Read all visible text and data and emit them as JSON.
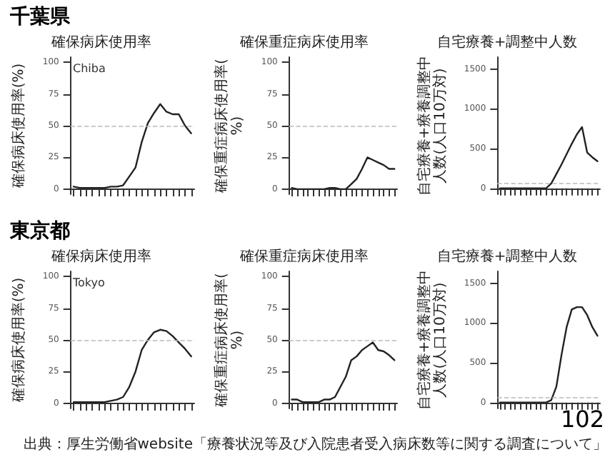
{
  "chart_data": [
    {
      "type": "line",
      "subtitle": "千葉県",
      "title": "確保病床使用率",
      "ylabel": "確保病床使用率(%)",
      "categories": [
        null,
        null,
        null,
        null,
        null,
        null,
        null,
        null,
        null,
        null,
        null,
        null,
        null,
        null,
        null,
        null,
        null,
        null,
        null,
        null
      ],
      "series": [
        {
          "color": "#222222",
          "values": [
            2,
            1,
            1,
            1,
            1,
            1,
            2,
            2,
            3,
            10,
            17,
            37,
            52,
            60,
            67,
            61,
            59,
            59,
            50,
            44
          ]
        }
      ],
      "ylim": [
        -4,
        104
      ],
      "yticks": [
        0,
        25,
        50,
        75,
        100
      ],
      "ref_lines": [
        {
          "axis": "y",
          "value": 50,
          "color": "#bbbbbb",
          "line_style": "dashed"
        }
      ],
      "annotations": [
        "Chiba"
      ],
      "line_style": "solid",
      "tick_labels": "y"
    },
    {
      "type": "line",
      "title": "確保重症病床使用率",
      "ylabel": "確保重症病床使用率(%)",
      "categories": [
        null,
        null,
        null,
        null,
        null,
        null,
        null,
        null,
        null,
        null,
        null,
        null,
        null,
        null,
        null,
        null,
        null,
        null,
        null,
        null
      ],
      "series": [
        {
          "color": "#222222",
          "values": [
            1,
            0,
            0,
            0,
            0,
            0,
            0,
            1,
            1,
            0,
            0,
            4,
            8,
            16,
            25,
            23,
            21,
            19,
            16,
            16
          ]
        }
      ],
      "ylim": [
        -4,
        104
      ],
      "yticks": [
        0,
        25,
        50,
        75,
        100
      ],
      "ref_lines": [
        {
          "axis": "y",
          "value": 50,
          "color": "#bbbbbb",
          "line_style": "dashed"
        }
      ],
      "line_style": "solid",
      "tick_labels": "y"
    },
    {
      "type": "line",
      "title": "自宅療養+調整中人数",
      "ylabel": "自宅療養+療養調整中人数(人口10万対)",
      "categories": [
        null,
        null,
        null,
        null,
        null,
        null,
        null,
        null,
        null,
        null,
        null,
        null,
        null,
        null,
        null,
        null,
        null,
        null,
        null,
        null
      ],
      "series": [
        {
          "color": "#222222",
          "values": [
            0,
            0,
            0,
            0,
            0,
            0,
            0,
            0,
            0,
            0,
            60,
            180,
            300,
            430,
            560,
            680,
            770,
            450,
            390,
            340
          ]
        }
      ],
      "ylim": [
        -75,
        1650
      ],
      "yticks": [
        0,
        500,
        1000,
        1500
      ],
      "ref_lines": [
        {
          "axis": "y",
          "value": 60,
          "color": "#bbbbbb",
          "line_style": "dashed"
        }
      ],
      "line_style": "solid",
      "tick_labels": "y"
    },
    {
      "type": "line",
      "subtitle": "東京都",
      "title": "確保病床使用率",
      "ylabel": "確保病床使用率(%)",
      "categories": [
        null,
        null,
        null,
        null,
        null,
        null,
        null,
        null,
        null,
        null,
        null,
        null,
        null,
        null,
        null,
        null,
        null,
        null,
        null,
        null
      ],
      "series": [
        {
          "color": "#222222",
          "values": [
            1,
            1,
            1,
            1,
            1,
            1,
            2,
            3,
            5,
            13,
            25,
            42,
            50,
            56,
            58,
            57,
            53,
            48,
            43,
            37
          ]
        }
      ],
      "ylim": [
        -4,
        104
      ],
      "yticks": [
        0,
        25,
        50,
        75,
        100
      ],
      "ref_lines": [
        {
          "axis": "y",
          "value": 50,
          "color": "#bbbbbb",
          "line_style": "dashed"
        }
      ],
      "annotations": [
        "Tokyo"
      ],
      "line_style": "solid",
      "tick_labels": "y"
    },
    {
      "type": "line",
      "title": "確保重症病床使用率",
      "ylabel": "確保重症病床使用率(%)",
      "categories": [
        null,
        null,
        null,
        null,
        null,
        null,
        null,
        null,
        null,
        null,
        null,
        null,
        null,
        null,
        null,
        null,
        null,
        null,
        null,
        null
      ],
      "series": [
        {
          "color": "#222222",
          "values": [
            3,
            3,
            1,
            1,
            1,
            1,
            3,
            3,
            5,
            13,
            21,
            34,
            37,
            42,
            45,
            48,
            42,
            41,
            38,
            34
          ]
        }
      ],
      "ylim": [
        -4,
        104
      ],
      "yticks": [
        0,
        25,
        50,
        75,
        100
      ],
      "ref_lines": [
        {
          "axis": "y",
          "value": 50,
          "color": "#bbbbbb",
          "line_style": "dashed"
        }
      ],
      "line_style": "solid",
      "tick_labels": "y"
    },
    {
      "type": "line",
      "title": "自宅療養+調整中人数",
      "ylabel": "自宅療養+療養調整中人数(人口10万対)",
      "categories": [
        null,
        null,
        null,
        null,
        null,
        null,
        null,
        null,
        null,
        null,
        null,
        null,
        null,
        null,
        null,
        null,
        null,
        null,
        null,
        null
      ],
      "series": [
        {
          "color": "#222222",
          "values": [
            0,
            0,
            0,
            0,
            0,
            0,
            0,
            0,
            0,
            0,
            30,
            200,
            600,
            950,
            1170,
            1200,
            1200,
            1100,
            950,
            840
          ]
        }
      ],
      "ylim": [
        -75,
        1650
      ],
      "yticks": [
        0,
        500,
        1000,
        1500
      ],
      "ref_lines": [
        {
          "axis": "y",
          "value": 60,
          "color": "#bbbbbb",
          "line_style": "dashed"
        }
      ],
      "annotations": [
        "出典：厚生労働省website「療養状況等及び入院患者受入病床数等に関する調査について」",
        "102"
      ],
      "line_style": "solid",
      "tick_labels": "y"
    }
  ]
}
